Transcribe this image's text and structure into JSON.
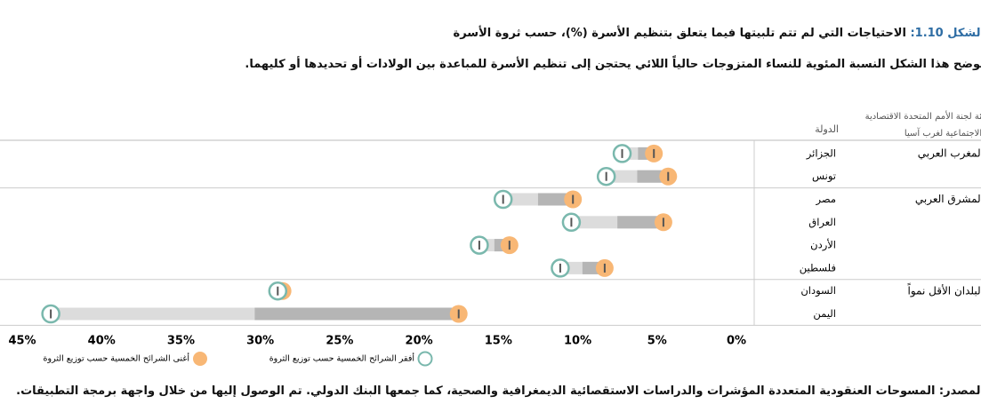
{
  "chart_data": {
    "type": "dumbbell",
    "figure_label": "الشكل 1.10:",
    "title": "الاحتياجات التي لم تتم تلبيتها فيما يتعلق بتنظيم الأسرة (%)، حسب ثروة الأسرة",
    "subtitle": "يوضح هذا الشكل النسبة المئوية للنساء المتزوجات حالياً اللائي يحتجن إلى تنظيم الأسرة للمباعدة بين الولادات أو تحديدها أو كليهما.",
    "group_header": "فئة لجنة الأمم المتحدة الاقتصادية والاجتماعية لغرب آسيا",
    "country_header": "الدولة",
    "groups": [
      {
        "name": "المغرب العربي",
        "categories": [
          "الجزائر",
          "تونس"
        ]
      },
      {
        "name": "المشرق العربي",
        "categories": [
          "مصر",
          "العراق",
          "الأردن",
          "فلسطين"
        ]
      },
      {
        "name": "البلدان الأقل نمواً",
        "categories": [
          "السودان",
          "اليمن"
        ]
      }
    ],
    "series": [
      {
        "name": "أفقر الشرائح الخمسية حسب توزيع الثروة",
        "color": "#7ab8ad",
        "values": [
          7.2,
          8.2,
          14.7,
          10.4,
          16.2,
          11.1,
          28.9,
          43.2
        ]
      },
      {
        "name": "أغنى الشرائح الخمسية حسب توزيع الثروة",
        "color": "#f8b775",
        "values": [
          5.2,
          4.3,
          10.3,
          4.6,
          14.3,
          8.3,
          28.6,
          17.5
        ]
      }
    ],
    "xlim": [
      0,
      45
    ],
    "x_reversed": true,
    "xticks": [
      {
        "value": 45,
        "label": "45%"
      },
      {
        "value": 40,
        "label": "40%"
      },
      {
        "value": 35,
        "label": "35%"
      },
      {
        "value": 30,
        "label": "30%"
      },
      {
        "value": 25,
        "label": "25%"
      },
      {
        "value": 20,
        "label": "20%"
      },
      {
        "value": 15,
        "label": "15%"
      },
      {
        "value": 10,
        "label": "10%"
      },
      {
        "value": 5,
        "label": "5%"
      },
      {
        "value": 0,
        "label": "0%"
      }
    ],
    "source": "المصدر: المسوحات العنقودية المتعددة المؤشرات والدراسات الاستقصائية الديمغرافية والصحية، كما جمعها البنك الدولي. تم الوصول إليها من خلال واجهة برمجة التطبيقات."
  }
}
